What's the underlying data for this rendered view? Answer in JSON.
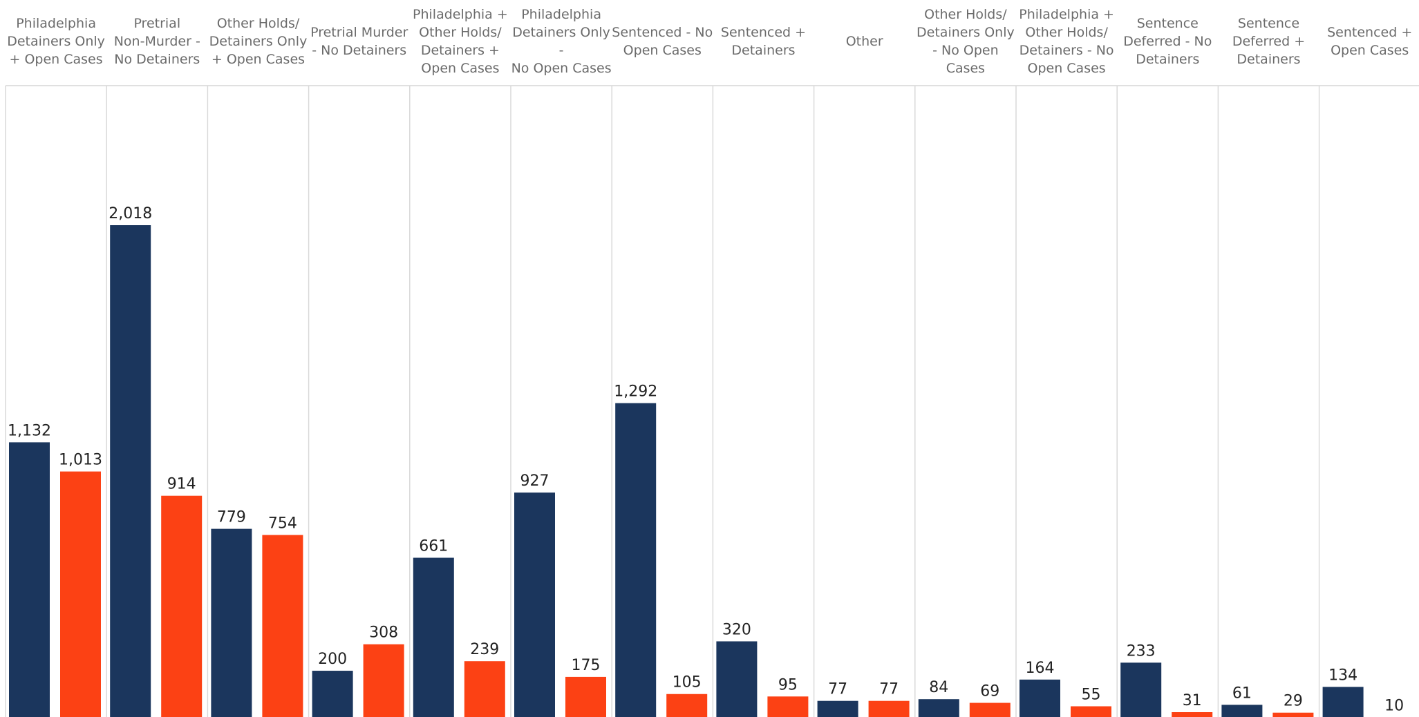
{
  "chart_data": {
    "type": "bar",
    "categories": [
      "Philadelphia Detainers Only + Open Cases",
      "Pretrial Non-Murder - No Detainers",
      "Other Holds/ Detainers Only + Open Cases",
      "Pretrial Murder - No Detainers",
      "Philadelphia + Other Holds/ Detainers + Open Cases",
      "Philadelphia Detainers Only - No Open Cases",
      "Sentenced - No Open Cases",
      "Sentenced + Detainers",
      "Other",
      "Other Holds/ Detainers Only - No Open Cases",
      "Philadelphia + Other Holds/ Detainers - No Open Cases",
      "Sentence Deferred - No Detainers",
      "Sentence Deferred + Detainers",
      "Sentenced + Open Cases"
    ],
    "header_lines": [
      [
        "Philadelphia",
        "Detainers Only",
        "+ Open Cases"
      ],
      [
        "Pretrial",
        "Non-Murder -",
        "No Detainers"
      ],
      [
        "Other Holds/",
        "Detainers Only",
        "+ Open Cases"
      ],
      [
        "Pretrial Murder",
        "- No Detainers"
      ],
      [
        "Philadelphia +",
        "Other Holds/",
        "Detainers +",
        "Open Cases"
      ],
      [
        "Philadelphia",
        "Detainers Only -",
        "No Open Cases"
      ],
      [
        "Sentenced - No",
        "Open Cases"
      ],
      [
        "Sentenced +",
        "Detainers"
      ],
      [
        "Other"
      ],
      [
        "Other Holds/",
        "Detainers Only",
        "- No Open Cases"
      ],
      [
        "Philadelphia +",
        "Other Holds/",
        "Detainers - No",
        "Open Cases"
      ],
      [
        "Sentence",
        "Deferred - No",
        "Detainers"
      ],
      [
        "Sentence",
        "Deferred +",
        "Detainers"
      ],
      [
        "Sentenced +",
        "Open Cases"
      ]
    ],
    "series": [
      {
        "color": "#1b365d",
        "values": [
          1132,
          2018,
          779,
          200,
          661,
          927,
          1292,
          320,
          77,
          84,
          164,
          233,
          61,
          134
        ],
        "labels": [
          "1,132",
          "2,018",
          "779",
          "200",
          "661",
          "927",
          "1,292",
          "320",
          "77",
          "84",
          "164",
          "233",
          "61",
          "134"
        ]
      },
      {
        "color": "#fc4114",
        "values": [
          1013,
          914,
          754,
          308,
          239,
          175,
          105,
          95,
          77,
          69,
          55,
          31,
          29,
          10
        ],
        "labels": [
          "1,013",
          "914",
          "754",
          "308",
          "239",
          "175",
          "105",
          "95",
          "77",
          "69",
          "55",
          "31",
          "29",
          "10"
        ]
      }
    ],
    "ylim": [
      0,
      2400
    ],
    "grid": false,
    "xlabel": "",
    "ylabel": "",
    "title": ""
  }
}
